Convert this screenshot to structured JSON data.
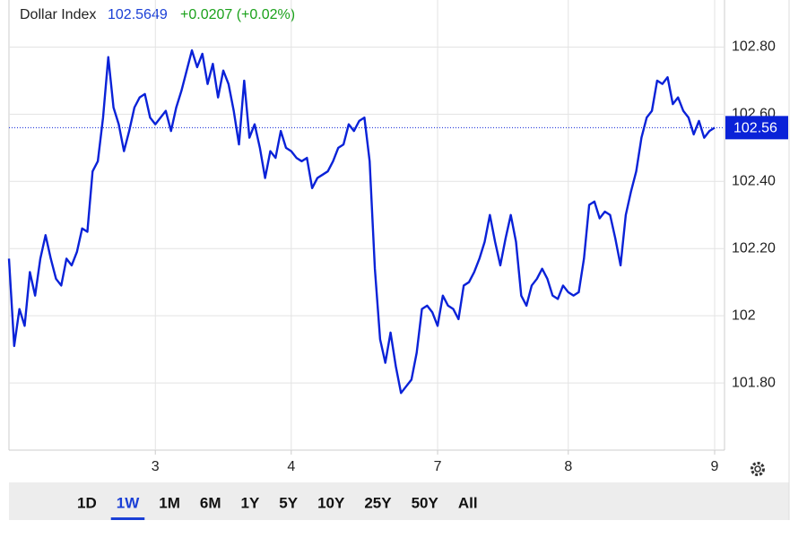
{
  "header": {
    "name": "Dollar Index",
    "price": "102.5649",
    "change": "+0.0207 (+0.02%)"
  },
  "range_buttons": {
    "items": [
      "1D",
      "1W",
      "1M",
      "6M",
      "1Y",
      "5Y",
      "10Y",
      "25Y",
      "50Y",
      "All"
    ],
    "selected": "1W"
  },
  "chart_data": {
    "type": "line",
    "color": "#0a22d8",
    "grid": true,
    "last_value": 102.56,
    "last_label": "102.56",
    "xlim": [
      0,
      135
    ],
    "xticks": [
      {
        "value": 28,
        "label": "3"
      },
      {
        "value": 54,
        "label": "4"
      },
      {
        "value": 82,
        "label": "7"
      },
      {
        "value": 107,
        "label": "8"
      },
      {
        "value": 135,
        "label": "9"
      }
    ],
    "ylim": [
      101.6,
      102.94
    ],
    "yticks": [
      {
        "value": 101.8,
        "label": "101.80"
      },
      102,
      {
        "value": 102.2,
        "label": "102.20"
      },
      {
        "value": 102.4,
        "label": "102.40"
      },
      {
        "value": 102.6,
        "label": "102.60"
      },
      {
        "value": 102.8,
        "label": "102.80"
      }
    ],
    "series": [
      {
        "name": "Dollar Index",
        "color": "#0a22d8",
        "values": [
          102.17,
          101.91,
          102.02,
          101.97,
          102.13,
          102.06,
          102.17,
          102.24,
          102.17,
          102.11,
          102.09,
          102.17,
          102.15,
          102.19,
          102.26,
          102.25,
          102.43,
          102.46,
          102.59,
          102.77,
          102.62,
          102.57,
          102.49,
          102.55,
          102.62,
          102.65,
          102.66,
          102.59,
          102.57,
          102.59,
          102.61,
          102.55,
          102.62,
          102.67,
          102.73,
          102.79,
          102.74,
          102.78,
          102.69,
          102.75,
          102.65,
          102.73,
          102.69,
          102.61,
          102.51,
          102.7,
          102.53,
          102.57,
          102.5,
          102.41,
          102.49,
          102.47,
          102.55,
          102.5,
          102.49,
          102.47,
          102.46,
          102.47,
          102.38,
          102.41,
          102.42,
          102.43,
          102.46,
          102.5,
          102.51,
          102.57,
          102.55,
          102.58,
          102.59,
          102.46,
          102.14,
          101.93,
          101.86,
          101.95,
          101.85,
          101.77,
          101.79,
          101.81,
          101.89,
          102.02,
          102.03,
          102.01,
          101.97,
          102.06,
          102.03,
          102.02,
          101.99,
          102.09,
          102.1,
          102.13,
          102.17,
          102.22,
          102.3,
          102.22,
          102.15,
          102.23,
          102.3,
          102.22,
          102.06,
          102.03,
          102.09,
          102.11,
          102.14,
          102.11,
          102.06,
          102.05,
          102.09,
          102.07,
          102.06,
          102.07,
          102.17,
          102.33,
          102.34,
          102.29,
          102.31,
          102.3,
          102.23,
          102.15,
          102.3,
          102.37,
          102.43,
          102.53,
          102.59,
          102.61,
          102.7,
          102.69,
          102.71,
          102.63,
          102.65,
          102.61,
          102.59,
          102.54,
          102.58,
          102.53,
          102.55,
          102.56
        ]
      }
    ]
  }
}
